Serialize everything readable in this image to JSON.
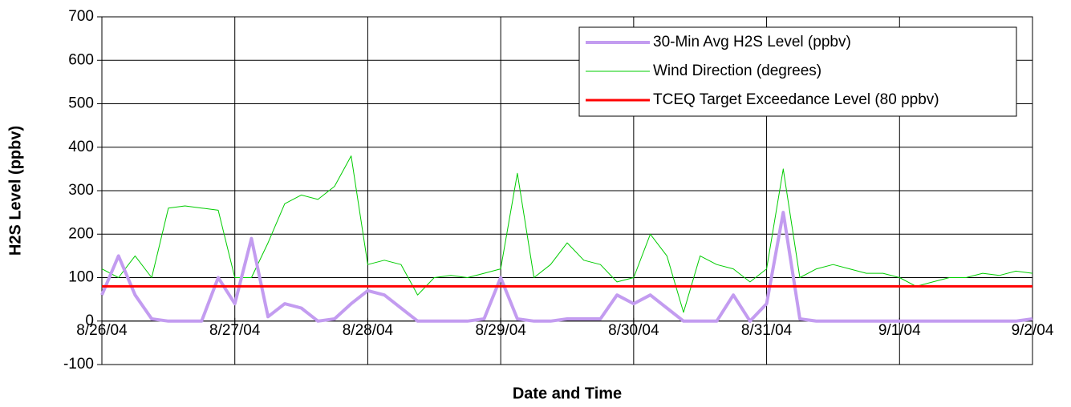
{
  "chart_data": {
    "type": "line",
    "x_label": "Date and Time",
    "y_label": "H2S Level (ppbv)",
    "categories": [
      "8/26/04",
      null,
      null,
      null,
      null,
      null,
      null,
      null,
      "8/27/04",
      null,
      null,
      null,
      null,
      null,
      null,
      null,
      "8/28/04",
      null,
      null,
      null,
      null,
      null,
      null,
      null,
      "8/29/04",
      null,
      null,
      null,
      null,
      null,
      null,
      null,
      "8/30/04",
      null,
      null,
      null,
      null,
      null,
      null,
      null,
      "8/31/04",
      null,
      null,
      null,
      null,
      null,
      null,
      null,
      "9/1/04",
      null,
      null,
      null,
      null,
      null,
      null,
      null,
      "9/2/04"
    ],
    "series": [
      {
        "name": "30-Min Avg H2S Level (ppbv)",
        "color": "#c39cf0",
        "width": 4,
        "values": [
          60,
          150,
          60,
          5,
          0,
          0,
          0,
          100,
          40,
          190,
          10,
          40,
          30,
          0,
          5,
          40,
          70,
          60,
          30,
          0,
          0,
          0,
          0,
          5,
          100,
          5,
          0,
          0,
          5,
          5,
          5,
          60,
          40,
          60,
          30,
          0,
          0,
          0,
          60,
          0,
          40,
          250,
          5,
          0,
          0,
          0,
          0,
          0,
          0,
          0,
          0,
          0,
          0,
          0,
          0,
          0,
          5
        ]
      },
      {
        "name": "Wind Direction (degrees)",
        "color": "#00cc00",
        "width": 1,
        "values": [
          120,
          100,
          150,
          100,
          260,
          265,
          260,
          255,
          100,
          100,
          180,
          270,
          290,
          280,
          310,
          380,
          130,
          140,
          130,
          60,
          100,
          105,
          100,
          110,
          120,
          340,
          100,
          130,
          180,
          140,
          130,
          90,
          100,
          200,
          150,
          20,
          150,
          130,
          120,
          90,
          120,
          350,
          100,
          120,
          130,
          120,
          110,
          110,
          100,
          80,
          90,
          100,
          100,
          110,
          105,
          115,
          110
        ]
      },
      {
        "name": "TCEQ Target Exceedance Level (80 ppbv)",
        "color": "#ff0000",
        "width": 3,
        "values": [
          80,
          80,
          80,
          80,
          80,
          80,
          80,
          80,
          80,
          80,
          80,
          80,
          80,
          80,
          80,
          80,
          80,
          80,
          80,
          80,
          80,
          80,
          80,
          80,
          80,
          80,
          80,
          80,
          80,
          80,
          80,
          80,
          80,
          80,
          80,
          80,
          80,
          80,
          80,
          80,
          80,
          80,
          80,
          80,
          80,
          80,
          80,
          80,
          80,
          80,
          80,
          80,
          80,
          80,
          80,
          80,
          80
        ]
      }
    ],
    "ylim": [
      -100,
      700
    ],
    "yticks": [
      -100,
      0,
      100,
      200,
      300,
      400,
      500,
      600,
      700
    ],
    "grid": true,
    "legend": "top-right"
  }
}
